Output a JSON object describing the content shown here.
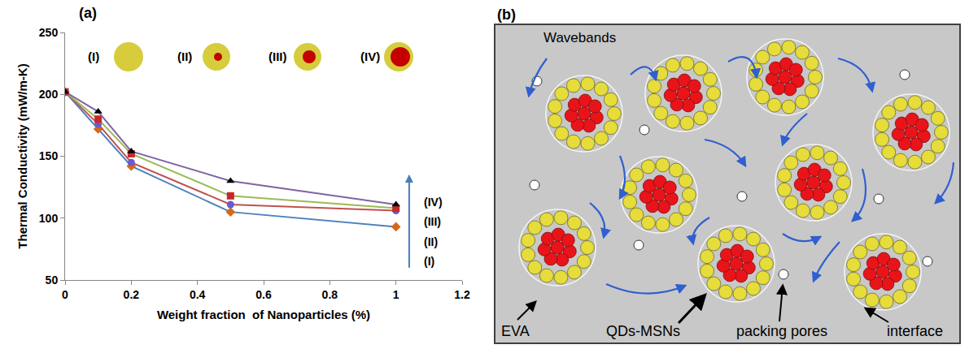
{
  "chart_data": {
    "type": "line",
    "panel": "(a)",
    "xlabel": "Weight fraction  of Nanoparticles (%)",
    "ylabel": "Thermal Conductivity (mW/m-K)",
    "x": [
      0,
      0.1,
      0.2,
      0.5,
      1
    ],
    "series": [
      {
        "name": "(I)",
        "color": "#4f81bd",
        "marker": "diamond",
        "line_style": "solid",
        "values": [
          202,
          172,
          142,
          105,
          93
        ]
      },
      {
        "name": "(II)",
        "color": "#c0504d",
        "marker": "circle",
        "line_style": "solid",
        "values": [
          202,
          176,
          145,
          111,
          106
        ]
      },
      {
        "name": "(III)",
        "color": "#9bbb59",
        "marker": "square",
        "line_style": "solid",
        "values": [
          202,
          180,
          152,
          118,
          108
        ]
      },
      {
        "name": "(IV)",
        "color": "#8064a2",
        "marker": "triangle",
        "line_style": "solid",
        "values": [
          202,
          186,
          154,
          130,
          111
        ]
      }
    ],
    "xlim": [
      0,
      1.2
    ],
    "xticks": [
      0,
      0.2,
      0.4,
      0.6,
      0.8,
      1,
      1.2
    ],
    "ylim": [
      50,
      250
    ],
    "yticks": [
      50,
      100,
      150,
      200,
      250
    ],
    "grid": false
  },
  "diagram": {
    "panel": "(b)",
    "labels": {
      "wavebands": "Wavebands",
      "matrix": "EVA",
      "particles": "QDs-MSNs",
      "pores": "packing pores",
      "interface": "interface"
    }
  }
}
